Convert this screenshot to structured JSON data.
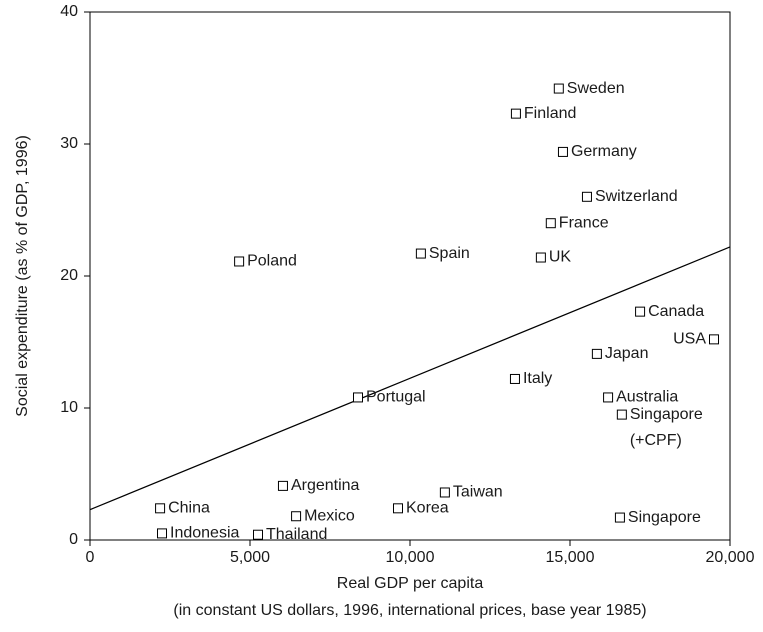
{
  "chart_data": {
    "type": "scatter",
    "ylabel": "Social expenditure (as % of GDP, 1996)",
    "xlabel": [
      "Real GDP per capita",
      "(in constant US dollars, 1996, international prices, base year 1985)"
    ],
    "labels": [
      "Sweden",
      "Finland",
      "Germany",
      "Switzerland",
      "France",
      "Poland",
      "Spain",
      "UK",
      "Canada",
      "USA",
      "Japan",
      "Italy",
      "Australia",
      "Portugal",
      "Singapore",
      "Argentina",
      "Taiwan",
      "China",
      "Korea",
      "Mexico",
      "Singapore",
      "Indonesia",
      "Thailand"
    ],
    "notes": {
      "14": "(+CPF)"
    },
    "x": [
      14650,
      13310,
      14780,
      15530,
      14400,
      4660,
      10340,
      14090,
      17190,
      19500,
      15840,
      13280,
      16190,
      8375,
      16620,
      6030,
      11090,
      2190,
      9625,
      6440,
      16560,
      2250,
      5250
    ],
    "y": [
      34.2,
      32.3,
      29.4,
      26.0,
      24.0,
      21.1,
      21.7,
      21.4,
      17.3,
      15.2,
      14.1,
      12.2,
      10.8,
      10.8,
      9.5,
      4.1,
      3.6,
      2.4,
      2.4,
      1.8,
      1.7,
      0.5,
      0.4
    ],
    "trend_line": {
      "x": [
        0,
        20000
      ],
      "y": [
        2.3,
        22.2
      ]
    },
    "color": "#000000",
    "xlim": [
      0,
      20000
    ],
    "xticks": [
      0,
      {
        "value": 5000,
        "label": "5,000"
      },
      {
        "value": 10000,
        "label": "10,000"
      },
      {
        "value": 15000,
        "label": "15,000"
      },
      {
        "value": 20000,
        "label": "20,000"
      }
    ],
    "ylim": [
      0,
      40
    ],
    "yticks": [
      0,
      10,
      20,
      30,
      40
    ],
    "grid": false
  }
}
